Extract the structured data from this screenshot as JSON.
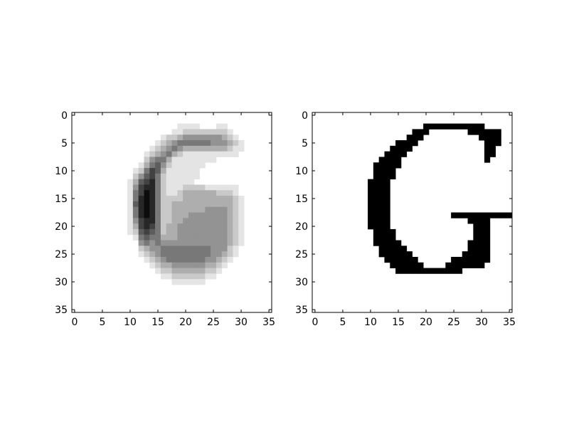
{
  "chart_data": [
    {
      "type": "heatmap",
      "title": "",
      "xlabel": "",
      "ylabel": "",
      "xlim": [
        -0.5,
        35.5
      ],
      "ylim": [
        35.5,
        -0.5
      ],
      "xticks": [
        "0",
        "5",
        "10",
        "15",
        "20",
        "25",
        "30",
        "35"
      ],
      "yticks": [
        "0",
        "5",
        "10",
        "15",
        "20",
        "25",
        "30",
        "35"
      ],
      "colormap": "gray_r",
      "grid": false,
      "rows": [
        "000000000000000000000000000000000000",
        "000000000000000000000000000000000000",
        "000000000000000000011110001100000000",
        "000000000000000000112222222210000000",
        "000000000000000012234444444321000000",
        "000000000000000123455555544432100000",
        "000000000000001234543333333321100000",
        "000000000000012345321111111111000000",
        "000000000000024553111111110000000000",
        "000000000000135642111111000000000000",
        "000000000001257631111110000000000000",
        "000000000002467521111110000000000000",
        "000000000013678521111100000000000000",
        "000000000014788521112222111111000000",
        "000000000015798521123333332221000000",
        "000000000015898522223333333332100000",
        "000000000016898522333333333332100000",
        "000000000015898522333333444432100000",
        "000000000015898522333444444432100000",
        "000000000014788522334444444432100000",
        "000000000013787523344444444432100000",
        "000000000012676523344444444432100000",
        "000000000001565533344444444432100000",
        "000000000000454544444444444432100000",
        "000000000000234455555555544421000000",
        "000000000000123455555555544321000000",
        "000000000000012345555555443210000000",
        "000000000000001233444444332100000000",
        "000000000000000122333333221000000000",
        "000000000000000011222222110000000000",
        "000000000000000000111111000000000000",
        "000000000000000000000000000000000000",
        "000000000000000000000000000000000000",
        "000000000000000000000000000000000000",
        "000000000000000000000000000000000000",
        "000000000000000000000000000000000000"
      ]
    },
    {
      "type": "heatmap",
      "title": "",
      "xlabel": "",
      "ylabel": "",
      "xlim": [
        -0.5,
        35.5
      ],
      "ylim": [
        35.5,
        -0.5
      ],
      "xticks": [
        "0",
        "5",
        "10",
        "15",
        "20",
        "25",
        "30",
        "35"
      ],
      "yticks": [
        "0",
        "5",
        "10",
        "15",
        "20",
        "25",
        "30",
        "35"
      ],
      "colormap": "binary",
      "grid": false,
      "rows": [
        "000000000000000000000000000000000000",
        "000000000000000000000000000000000000",
        "000000000000000000001111111111100000",
        "000000000000000000111000000011111100",
        "000000000000000001110000000000111100",
        "000000000000000111100000000000011100",
        "000000000000001111000000000000011000",
        "000000000000011110000000000000011000",
        "000000000000111100000000000000010000",
        "000000000001111100000000000000000000",
        "000000000001111000000000000000000000",
        "000000000001111000000000000000000000",
        "000000000011110000000000000000000000",
        "000000000011110000000000000000000000",
        "000000000011110000000000000000000000",
        "000000000011110000000000000000000000",
        "000000000011110000000000000000000000",
        "000000000011110000000000000000000000",
        "000000000011110000000000011111111111",
        "000000000011110000000000000011110000",
        "000000000011110000000000000001110000",
        "000000000001111000000000000001110000",
        "000000000001111000000000000001110000",
        "000000000001111100000000000011110000",
        "000000000000111110000000000011110000",
        "000000000000111111000000000111110000",
        "000000000000011111100000011111110000",
        "000000000000001111110000111111100000",
        "000000000000000111111111111000000000",
        "000000000000000000000000000000000000",
        "000000000000000000000000000000000000",
        "000000000000000000000000000000000000",
        "000000000000000000000000000000000000",
        "000000000000000000000000000000000000",
        "000000000000000000000000000000000000",
        "000000000000000000000000000000000000"
      ]
    }
  ]
}
